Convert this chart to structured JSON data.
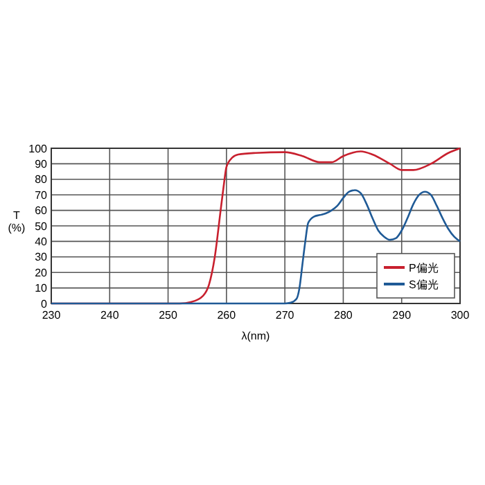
{
  "chart_data": {
    "type": "line",
    "xlabel": "λ(nm)",
    "ylabel": "T\n(%)",
    "xlim": [
      230,
      300
    ],
    "ylim": [
      0,
      100
    ],
    "xticks": [
      230,
      240,
      250,
      260,
      270,
      280,
      290,
      300
    ],
    "yticks": [
      0,
      10,
      20,
      30,
      40,
      50,
      60,
      70,
      80,
      90,
      100
    ],
    "grid": true,
    "legend": "bottom right",
    "marker": "none",
    "line_style": "solid",
    "series": [
      {
        "name": "P偏光",
        "color": "#c8202e",
        "x": [
          230,
          252,
          254,
          256,
          257,
          258,
          259,
          259.5,
          260,
          261,
          262,
          265,
          270,
          273,
          276,
          278,
          280,
          283,
          285,
          288,
          290,
          292,
          295,
          298,
          300
        ],
        "values": [
          0,
          0,
          1,
          5,
          12,
          30,
          60,
          75,
          88,
          94,
          96,
          97,
          97.5,
          95,
          91,
          91,
          95,
          98,
          96,
          90,
          86,
          86,
          90,
          97,
          100
        ]
      },
      {
        "name": "S偏光",
        "color": "#1f5a96",
        "x": [
          230,
          270,
          271,
          272,
          272.5,
          273,
          273.5,
          274,
          275,
          276,
          277,
          278,
          279,
          280,
          281,
          282,
          283,
          284,
          285,
          286,
          287,
          288,
          289,
          290,
          291,
          292,
          293,
          294,
          295,
          296,
          297,
          298,
          299,
          300
        ],
        "values": [
          0,
          0,
          0.5,
          3,
          10,
          25,
          40,
          52,
          56,
          57,
          58,
          60,
          63,
          68,
          72,
          73,
          71,
          64,
          55,
          47,
          43,
          41,
          42,
          47,
          55,
          64,
          70,
          72,
          70,
          63,
          55,
          48,
          43,
          40
        ]
      }
    ]
  }
}
